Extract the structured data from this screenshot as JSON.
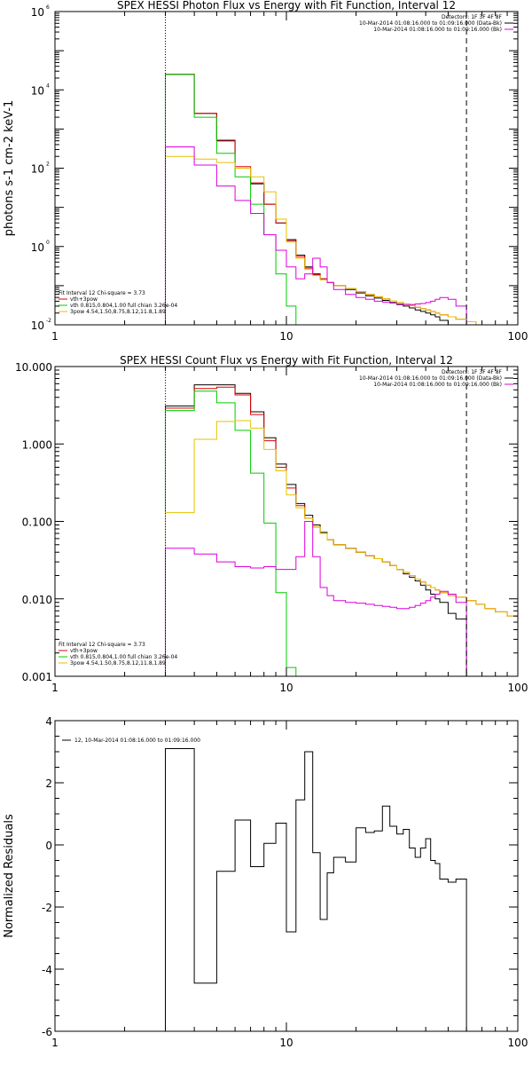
{
  "colors": {
    "background": "#ffffff",
    "axes": "#000000",
    "data": "#000000",
    "total": "#e00000",
    "thermal": "#00cc00",
    "power": "#e6c200",
    "background_spec": "#dd00dd"
  },
  "chart_data": [
    {
      "type": "line",
      "step": true,
      "title": "SPEX HESSI Photon Flux vs Energy with Fit Function, Interval 12",
      "xlabel": "",
      "ylabel": "photons s-1 cm-2 keV-1",
      "xscale": "log",
      "yscale": "log",
      "xlim": [
        1,
        100
      ],
      "ylim": [
        0.01,
        1000000
      ],
      "xticks": [
        1,
        10,
        100
      ],
      "xtick_labels": [
        "1",
        "10",
        "100"
      ],
      "yticks": [
        0.01,
        1,
        100,
        10000,
        1000000
      ],
      "ytick_labels": [
        "10",
        "10",
        "10",
        "10",
        "10"
      ],
      "ytick_exponents": [
        "-2",
        "0",
        "2",
        "4",
        "6"
      ],
      "legend_top_right": [
        "Detectors: 1F 3F 4F 8F",
        "10-Mar-2014 01:08:16.000 to 01:09:16.000 (Data-Bk)",
        "10-Mar-2014 01:08:16.000 to 01:09:16.000 (Bk)"
      ],
      "legend_bottom_left": [
        "Fit Interval 12   Chi-square = 3.73",
        "vth+3pow",
        "vth 0.815,0.804,1.00  full chian 3.26e-04",
        "3pow 4.54,1.50,8.75,8.12,11.8,1.89"
      ],
      "markers": {
        "left_dotted": 3,
        "right_dashed": 60
      },
      "edges": [
        3,
        4,
        5,
        6,
        7,
        8,
        9,
        10,
        11,
        12,
        13,
        14,
        15,
        16,
        18,
        20,
        22,
        24,
        26,
        28,
        30,
        32,
        34,
        36,
        38,
        40,
        42,
        44,
        46,
        50,
        54,
        60,
        66,
        72,
        80,
        90,
        100
      ],
      "series": [
        {
          "name": "10-Mar-2014 01:08:16.000 to 01:09:16.000 (Data-Bk)",
          "color_key": "data",
          "values": [
            25000.0,
            2500.0,
            500,
            100,
            40,
            12,
            4,
            1.5,
            0.6,
            0.3,
            0.2,
            0.15,
            0.12,
            0.1,
            0.08,
            0.065,
            0.055,
            0.048,
            0.042,
            0.037,
            0.033,
            0.03,
            0.027,
            0.024,
            0.022,
            0.02,
            0.018,
            0.016,
            0.013,
            0.01,
            0.006
          ]
        },
        {
          "name": "vth+3pow",
          "color_key": "total",
          "values": [
            25000.0,
            2500.0,
            520,
            110,
            42,
            12,
            4,
            1.4,
            0.55,
            0.28,
            0.19,
            0.15,
            0.12,
            0.1,
            0.085,
            0.07,
            0.06,
            0.052,
            0.046,
            0.041,
            0.037,
            0.034,
            0.031,
            0.028,
            0.026,
            0.024,
            0.022,
            0.02,
            0.018,
            0.016,
            0.014,
            0.012,
            0.01,
            0.008,
            0.0065,
            0.0055
          ]
        },
        {
          "name": "vth 0.815,0.804,1.00  full chian 3.26e-04",
          "color_key": "thermal",
          "values": [
            25000.0,
            2000.0,
            240,
            60,
            12,
            2,
            0.2,
            0.03,
            0.008
          ]
        },
        {
          "name": "3pow 4.54,1.50,8.75,8.12,11.8,1.89",
          "color_key": "power",
          "values": [
            200,
            170,
            140,
            100,
            60,
            25,
            5,
            1.3,
            0.5,
            0.26,
            0.18,
            0.14,
            0.12,
            0.1,
            0.085,
            0.07,
            0.06,
            0.052,
            0.046,
            0.041,
            0.037,
            0.034,
            0.031,
            0.028,
            0.026,
            0.024,
            0.022,
            0.02,
            0.018,
            0.016,
            0.014,
            0.012,
            0.01,
            0.008,
            0.0065,
            0.0055
          ]
        },
        {
          "name": "10-Mar-2014 01:08:16.000 to 01:09:16.000 (Bk)",
          "color_key": "background_spec",
          "values": [
            350,
            120,
            35,
            15,
            7,
            2,
            0.8,
            0.3,
            0.15,
            0.2,
            0.5,
            0.3,
            0.12,
            0.08,
            0.06,
            0.05,
            0.045,
            0.04,
            0.038,
            0.036,
            0.034,
            0.033,
            0.033,
            0.034,
            0.035,
            0.037,
            0.04,
            0.045,
            0.05,
            0.045,
            0.03
          ]
        }
      ]
    },
    {
      "type": "line",
      "step": true,
      "title": "SPEX HESSI Count Flux vs Energy with Fit Function, Interval 12",
      "xlabel": "",
      "ylabel": "",
      "xscale": "log",
      "yscale": "log",
      "xlim": [
        1,
        100
      ],
      "ylim": [
        0.001,
        10
      ],
      "xticks": [
        1,
        10,
        100
      ],
      "xtick_labels": [
        "1",
        "10",
        "100"
      ],
      "yticks": [
        0.001,
        0.01,
        0.1,
        1,
        10
      ],
      "ytick_labels": [
        "0.001",
        "0.010",
        "0.100",
        "1.000",
        "10.000"
      ],
      "legend_top_right": [
        "Detectors: 1F 3F 4F 8F",
        "10-Mar-2014 01:08:16.000 to 01:09:16.000 (Data-Bk)",
        "10-Mar-2014 01:08:16.000 to 01:09:16.000 (Bk)"
      ],
      "legend_bottom_left": [
        "Fit Interval 12   Chi-square = 3.73",
        "vth+3pow",
        "vth 0.815,0.804,1.00  full chian 3.26e-04",
        "3pow 4.54,1.50,8.75,8.12,11.8,1.89"
      ],
      "markers": {
        "left_dotted": 3,
        "right_dashed": 60
      },
      "edges": [
        3,
        4,
        5,
        6,
        7,
        8,
        9,
        10,
        11,
        12,
        13,
        14,
        15,
        16,
        18,
        20,
        22,
        24,
        26,
        28,
        30,
        32,
        34,
        36,
        38,
        40,
        42,
        44,
        46,
        50,
        54,
        60,
        66,
        72,
        80,
        90,
        100
      ],
      "series": [
        {
          "name": "10-Mar-2014 01:08:16.000 to 01:09:16.000 (Data-Bk)",
          "color_key": "data",
          "values": [
            3.1,
            5.8,
            5.8,
            4.5,
            2.6,
            1.2,
            0.55,
            0.3,
            0.17,
            0.12,
            0.09,
            0.072,
            0.058,
            0.05,
            0.045,
            0.04,
            0.036,
            0.033,
            0.03,
            0.027,
            0.024,
            0.021,
            0.019,
            0.017,
            0.015,
            0.013,
            0.0115,
            0.01,
            0.009,
            0.0065,
            0.0055
          ]
        },
        {
          "name": "vth+3pow",
          "color_key": "total",
          "values": [
            2.9,
            5.2,
            5.4,
            4.3,
            2.4,
            1.1,
            0.5,
            0.27,
            0.16,
            0.11,
            0.085,
            0.07,
            0.058,
            0.05,
            0.045,
            0.04,
            0.036,
            0.033,
            0.03,
            0.027,
            0.024,
            0.022,
            0.02,
            0.018,
            0.0165,
            0.015,
            0.014,
            0.013,
            0.012,
            0.011,
            0.0105,
            0.0095,
            0.0085,
            0.0075,
            0.0068,
            0.006
          ]
        },
        {
          "name": "vth 0.815,0.804,1.00  full chian 3.26e-04",
          "color_key": "thermal",
          "values": [
            2.7,
            4.8,
            3.4,
            1.5,
            0.42,
            0.095,
            0.012,
            0.0013
          ]
        },
        {
          "name": "3pow 4.54,1.50,8.75,8.12,11.8,1.89",
          "color_key": "power",
          "values": [
            0.13,
            1.15,
            1.95,
            2.0,
            1.6,
            0.85,
            0.45,
            0.22,
            0.15,
            0.11,
            0.085,
            0.07,
            0.058,
            0.05,
            0.045,
            0.04,
            0.036,
            0.033,
            0.03,
            0.027,
            0.024,
            0.022,
            0.02,
            0.018,
            0.0165,
            0.015,
            0.014,
            0.013,
            0.012,
            0.011,
            0.0105,
            0.0095,
            0.0085,
            0.0075,
            0.0068,
            0.006
          ]
        },
        {
          "name": "10-Mar-2014 01:08:16.000 to 01:09:16.000 (Bk)",
          "color_key": "background_spec",
          "values": [
            0.045,
            0.038,
            0.03,
            0.026,
            0.025,
            0.026,
            0.024,
            0.024,
            0.035,
            0.1,
            0.035,
            0.014,
            0.011,
            0.0095,
            0.009,
            0.0088,
            0.0085,
            0.0082,
            0.008,
            0.0078,
            0.0075,
            0.0075,
            0.0078,
            0.0082,
            0.0088,
            0.0095,
            0.0105,
            0.0115,
            0.0125,
            0.0115,
            0.009
          ]
        }
      ]
    },
    {
      "type": "line",
      "step": true,
      "title": "",
      "xlabel": "",
      "ylabel": "Normalized Residuals",
      "xscale": "log",
      "yscale": "linear",
      "xlim": [
        1,
        100
      ],
      "ylim": [
        -6,
        4
      ],
      "xticks": [
        1,
        10,
        100
      ],
      "xtick_labels": [
        "1",
        "10",
        "100"
      ],
      "yticks": [
        -6,
        -4,
        -2,
        0,
        2,
        4
      ],
      "ytick_labels": [
        "-6",
        "-4",
        "-2",
        "0",
        "2",
        "4"
      ],
      "legend": [
        "12, 10-Mar-2014 01:08:16.000 to 01:09:16.000"
      ],
      "edges": [
        3,
        4,
        5,
        6,
        7,
        8,
        9,
        10,
        11,
        12,
        13,
        14,
        15,
        16,
        18,
        20,
        22,
        24,
        26,
        28,
        30,
        32,
        34,
        36,
        38,
        40,
        42,
        44,
        46,
        50,
        54,
        60
      ],
      "series": [
        {
          "name": "12, 10-Mar-2014 01:08:16.000 to 01:09:16.000",
          "color_key": "data",
          "values": [
            3.1,
            -4.45,
            -0.85,
            0.8,
            -0.7,
            0.05,
            0.7,
            -2.8,
            1.45,
            3.0,
            -0.25,
            -2.4,
            -0.9,
            -0.4,
            -0.55,
            0.55,
            0.4,
            0.45,
            1.25,
            0.6,
            0.35,
            0.5,
            -0.1,
            -0.4,
            -0.1,
            0.2,
            -0.5,
            -0.6,
            -1.1,
            -1.2,
            -1.1
          ]
        }
      ]
    }
  ]
}
